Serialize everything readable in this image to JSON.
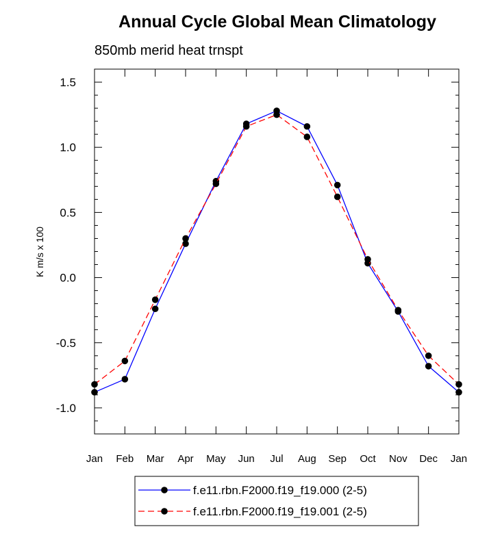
{
  "chart_data": {
    "type": "line",
    "title": "Annual Cycle Global Mean Climatology",
    "subtitle": "850mb merid heat trnspt",
    "xlabel": "",
    "ylabel": "K m/s x 100",
    "categories": [
      "Jan",
      "Feb",
      "Mar",
      "Apr",
      "May",
      "Jun",
      "Jul",
      "Aug",
      "Sep",
      "Oct",
      "Nov",
      "Dec",
      "Jan"
    ],
    "ylim": [
      -1.2,
      1.6
    ],
    "yticks": [
      -1.0,
      -0.5,
      0.0,
      0.5,
      1.0,
      1.5
    ],
    "ytick_labels": [
      "-1.0",
      "-0.5",
      "0.0",
      "0.5",
      "1.0",
      "1.5"
    ],
    "series": [
      {
        "name": "f.e11.rbn.F2000.f19_f19.000 (2-5)",
        "color": "#0000ff",
        "line_style": "solid",
        "values": [
          -0.88,
          -0.78,
          -0.24,
          0.26,
          0.74,
          1.18,
          1.28,
          1.16,
          0.71,
          0.11,
          -0.26,
          -0.68,
          -0.88
        ]
      },
      {
        "name": "f.e11.rbn.F2000.f19_f19.001 (2-5)",
        "color": "#ff0000",
        "line_style": "dashed",
        "values": [
          -0.82,
          -0.64,
          -0.17,
          0.3,
          0.72,
          1.16,
          1.25,
          1.08,
          0.62,
          0.14,
          -0.25,
          -0.6,
          -0.82
        ]
      }
    ],
    "legend": "bottom"
  }
}
